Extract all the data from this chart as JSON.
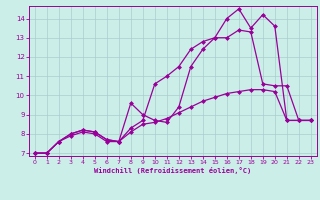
{
  "background_color": "#cceee8",
  "grid_color": "#aacccc",
  "line_color": "#990099",
  "xlim": [
    -0.5,
    23.5
  ],
  "ylim": [
    6.85,
    14.65
  ],
  "xlabel": "Windchill (Refroidissement éolien,°C)",
  "yticks": [
    7,
    8,
    9,
    10,
    11,
    12,
    13,
    14
  ],
  "xticks": [
    0,
    1,
    2,
    3,
    4,
    5,
    6,
    7,
    8,
    9,
    10,
    11,
    12,
    13,
    14,
    15,
    16,
    17,
    18,
    19,
    20,
    21,
    22,
    23
  ],
  "series1_x": [
    0,
    1,
    2,
    3,
    4,
    5,
    6,
    7,
    8,
    9,
    10,
    11,
    12,
    13,
    14,
    15,
    16,
    17,
    18,
    19,
    20,
    21,
    22,
    23
  ],
  "series1_y": [
    7.0,
    7.0,
    7.6,
    8.0,
    8.2,
    8.1,
    7.7,
    7.6,
    9.6,
    9.0,
    8.7,
    8.6,
    9.4,
    11.5,
    12.4,
    13.0,
    14.0,
    14.5,
    13.5,
    14.2,
    13.6,
    8.7,
    8.7,
    8.7
  ],
  "series2_x": [
    0,
    1,
    2,
    3,
    4,
    5,
    6,
    7,
    8,
    9,
    10,
    11,
    12,
    13,
    14,
    15,
    16,
    17,
    18,
    19,
    20,
    21,
    22,
    23
  ],
  "series2_y": [
    7.0,
    7.0,
    7.6,
    8.0,
    8.2,
    8.1,
    7.7,
    7.6,
    8.3,
    8.7,
    10.6,
    11.0,
    11.5,
    12.4,
    12.8,
    13.0,
    13.0,
    13.4,
    13.3,
    10.6,
    10.5,
    10.5,
    8.7,
    8.7
  ],
  "series3_x": [
    0,
    1,
    2,
    3,
    4,
    5,
    6,
    7,
    8,
    9,
    10,
    11,
    12,
    13,
    14,
    15,
    16,
    17,
    18,
    19,
    20,
    21,
    22,
    23
  ],
  "series3_y": [
    7.0,
    7.0,
    7.6,
    7.9,
    8.1,
    8.0,
    7.6,
    7.6,
    8.1,
    8.5,
    8.6,
    8.8,
    9.1,
    9.4,
    9.7,
    9.9,
    10.1,
    10.2,
    10.3,
    10.3,
    10.2,
    8.7,
    8.7,
    8.7
  ],
  "marker_size": 2.5,
  "linewidth": 0.9
}
